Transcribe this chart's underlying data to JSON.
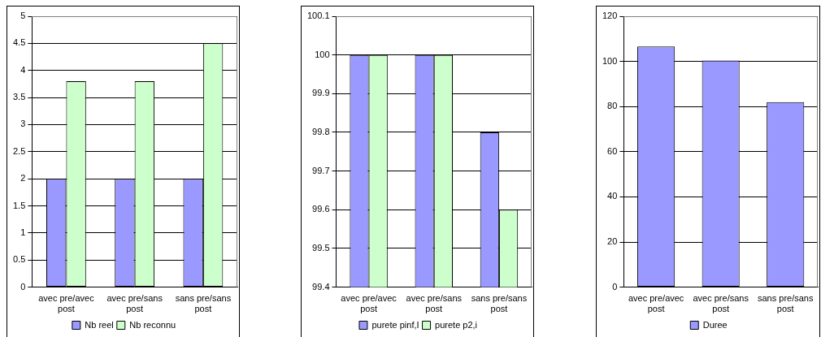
{
  "chart_data": [
    {
      "type": "bar",
      "categories": [
        "avec pre/avec post",
        "avec pre/sans post",
        "sans pre/sans post"
      ],
      "series": [
        {
          "name": "Nb reel",
          "color": "#9999ff",
          "values": [
            2,
            2,
            2
          ]
        },
        {
          "name": "Nb reconnu",
          "color": "#ccffcc",
          "values": [
            3.8,
            3.8,
            4.5
          ]
        }
      ],
      "ylim": [
        0,
        5
      ],
      "yticks": [
        0,
        0.5,
        1,
        1.5,
        2,
        2.5,
        3,
        3.5,
        4,
        4.5,
        5
      ],
      "grid": "y",
      "legend": "bottom"
    },
    {
      "type": "bar",
      "categories": [
        "avec pre/avec post",
        "avec pre/sans post",
        "sans pre/sans post"
      ],
      "series": [
        {
          "name": "purete pinf,I",
          "color": "#9999ff",
          "values": [
            100,
            100,
            99.8
          ]
        },
        {
          "name": "purete p2,i",
          "color": "#ccffcc",
          "values": [
            100,
            100,
            99.6
          ]
        }
      ],
      "ylim": [
        99.4,
        100.1
      ],
      "yticks": [
        99.4,
        99.5,
        99.6,
        99.7,
        99.8,
        99.9,
        100,
        100.1
      ],
      "grid": "y",
      "legend": "bottom"
    },
    {
      "type": "bar",
      "categories": [
        "avec pre/avec post",
        "avec pre/sans post",
        "sans pre/sans post"
      ],
      "series": [
        {
          "name": "Duree",
          "color": "#9999ff",
          "values": [
            106.6,
            100.4,
            82
          ]
        }
      ],
      "ylim": [
        0,
        120
      ],
      "yticks": [
        0,
        20,
        40,
        60,
        80,
        100,
        120
      ],
      "grid": "y",
      "legend": "bottom"
    }
  ]
}
